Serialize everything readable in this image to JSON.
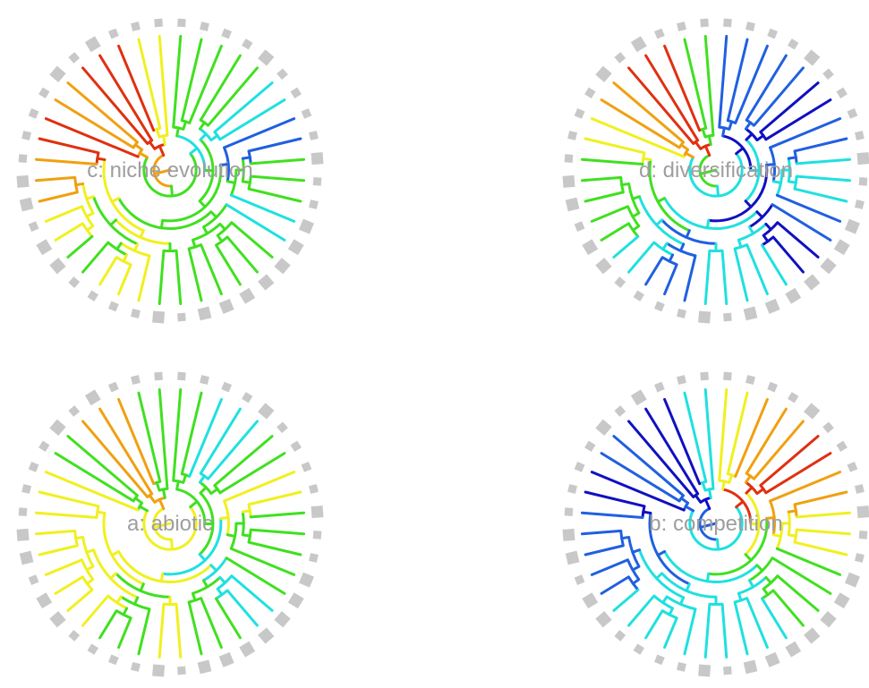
{
  "panels": [
    {
      "id": "c",
      "label": "c: niche evolution",
      "palette": "niche"
    },
    {
      "id": "d",
      "label": "d: diversification",
      "palette": "divers"
    },
    {
      "id": "a",
      "label": "a: abiotic",
      "palette": "abiotic"
    },
    {
      "id": "b",
      "label": "b: competition",
      "palette": "competition"
    }
  ],
  "tip_marker_color": "#c8c8c8",
  "colors": {
    "red": "#e03010",
    "orange": "#f0a010",
    "yellow": "#f0f020",
    "green": "#40e020",
    "cyan": "#20e0e0",
    "blue": "#2060e0",
    "navy": "#1010c0"
  }
}
